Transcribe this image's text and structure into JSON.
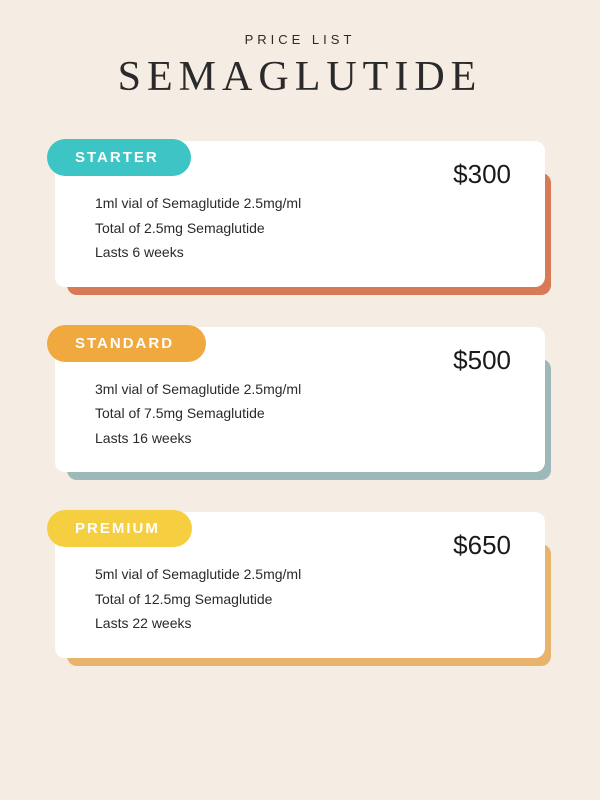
{
  "header": {
    "overline": "PRICE LIST",
    "title": "SEMAGLUTIDE"
  },
  "background_color": "#f5ede4",
  "card_color": "#ffffff",
  "text_color": "#2a2a2a",
  "tiers": [
    {
      "name": "STARTER",
      "price": "$300",
      "pill_color": "#3dc4c4",
      "shadow_color": "#d97a56",
      "lines": [
        "1ml vial of Semaglutide 2.5mg/ml",
        "Total of 2.5mg Semaglutide",
        "Lasts 6 weeks"
      ]
    },
    {
      "name": "STANDARD",
      "price": "$500",
      "pill_color": "#f0a93e",
      "shadow_color": "#9db8b8",
      "lines": [
        "3ml vial of Semaglutide 2.5mg/ml",
        "Total of 7.5mg Semaglutide",
        "Lasts 16 weeks"
      ]
    },
    {
      "name": "PREMIUM",
      "price": "$650",
      "pill_color": "#f5cf3f",
      "shadow_color": "#e8b36a",
      "lines": [
        "5ml vial of Semaglutide 2.5mg/ml",
        "Total of 12.5mg Semaglutide",
        "Lasts 22 weeks"
      ]
    }
  ]
}
